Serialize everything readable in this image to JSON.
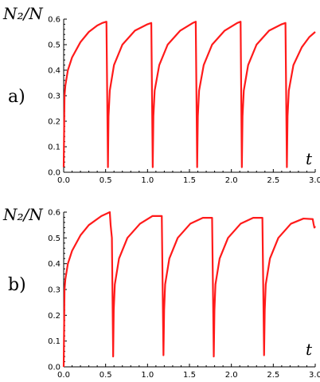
{
  "chart_data": [
    {
      "type": "line",
      "panel_label": "a)",
      "ylabel": "N₂/N",
      "xlabel": "t",
      "xlim": [
        0,
        3.0
      ],
      "ylim": [
        0,
        0.6
      ],
      "xticks": [
        "0.0",
        "0.5",
        "1.0",
        "1.5",
        "2.0",
        "2.5",
        "3.0"
      ],
      "yticks": [
        "0.0",
        "0.1",
        "0.2",
        "0.3",
        "0.4",
        "0.5",
        "0.6"
      ],
      "grid": false,
      "color": "#ff1a1a",
      "series": [
        {
          "values": [
            {
              "x": 0.0,
              "y": 0.02
            },
            {
              "x": 0.01,
              "y": 0.3
            },
            {
              "x": 0.02,
              "y": 0.34
            },
            {
              "x": 0.05,
              "y": 0.4
            },
            {
              "x": 0.1,
              "y": 0.45
            },
            {
              "x": 0.2,
              "y": 0.51
            },
            {
              "x": 0.3,
              "y": 0.55
            },
            {
              "x": 0.4,
              "y": 0.575
            },
            {
              "x": 0.46,
              "y": 0.585
            },
            {
              "x": 0.51,
              "y": 0.59
            },
            {
              "x": 0.528,
              "y": 0.02
            },
            {
              "x": 0.535,
              "y": 0.22
            },
            {
              "x": 0.55,
              "y": 0.32
            },
            {
              "x": 0.6,
              "y": 0.42
            },
            {
              "x": 0.7,
              "y": 0.5
            },
            {
              "x": 0.85,
              "y": 0.555
            },
            {
              "x": 1.0,
              "y": 0.58
            },
            {
              "x": 1.045,
              "y": 0.585
            },
            {
              "x": 1.062,
              "y": 0.02
            },
            {
              "x": 1.07,
              "y": 0.22
            },
            {
              "x": 1.085,
              "y": 0.32
            },
            {
              "x": 1.14,
              "y": 0.42
            },
            {
              "x": 1.24,
              "y": 0.5
            },
            {
              "x": 1.39,
              "y": 0.555
            },
            {
              "x": 1.54,
              "y": 0.585
            },
            {
              "x": 1.575,
              "y": 0.59
            },
            {
              "x": 1.592,
              "y": 0.02
            },
            {
              "x": 1.6,
              "y": 0.22
            },
            {
              "x": 1.615,
              "y": 0.32
            },
            {
              "x": 1.67,
              "y": 0.42
            },
            {
              "x": 1.77,
              "y": 0.5
            },
            {
              "x": 1.92,
              "y": 0.555
            },
            {
              "x": 2.07,
              "y": 0.585
            },
            {
              "x": 2.11,
              "y": 0.59
            },
            {
              "x": 2.125,
              "y": 0.02
            },
            {
              "x": 2.133,
              "y": 0.22
            },
            {
              "x": 2.148,
              "y": 0.32
            },
            {
              "x": 2.2,
              "y": 0.42
            },
            {
              "x": 2.3,
              "y": 0.5
            },
            {
              "x": 2.45,
              "y": 0.555
            },
            {
              "x": 2.6,
              "y": 0.58
            },
            {
              "x": 2.645,
              "y": 0.585
            },
            {
              "x": 2.662,
              "y": 0.02
            },
            {
              "x": 2.67,
              "y": 0.22
            },
            {
              "x": 2.685,
              "y": 0.32
            },
            {
              "x": 2.74,
              "y": 0.42
            },
            {
              "x": 2.84,
              "y": 0.49
            },
            {
              "x": 2.93,
              "y": 0.53
            },
            {
              "x": 3.0,
              "y": 0.55
            }
          ]
        }
      ]
    },
    {
      "type": "line",
      "panel_label": "b)",
      "ylabel": "N₂/N",
      "xlabel": "t",
      "xlim": [
        0,
        3.0
      ],
      "ylim": [
        0,
        0.6
      ],
      "xticks": [
        "0.0",
        "0.5",
        "1.0",
        "1.5",
        "2.0",
        "2.5",
        "3.0"
      ],
      "yticks": [
        "0.0",
        "0.1",
        "0.2",
        "0.3",
        "0.4",
        "0.5",
        "0.6"
      ],
      "grid": false,
      "color": "#ff1a1a",
      "series": [
        {
          "values": [
            {
              "x": 0.0,
              "y": 0.0
            },
            {
              "x": 0.01,
              "y": 0.3
            },
            {
              "x": 0.02,
              "y": 0.34
            },
            {
              "x": 0.05,
              "y": 0.4
            },
            {
              "x": 0.1,
              "y": 0.45
            },
            {
              "x": 0.2,
              "y": 0.51
            },
            {
              "x": 0.3,
              "y": 0.55
            },
            {
              "x": 0.45,
              "y": 0.585
            },
            {
              "x": 0.55,
              "y": 0.6
            },
            {
              "x": 0.56,
              "y": 0.55
            },
            {
              "x": 0.575,
              "y": 0.5
            },
            {
              "x": 0.59,
              "y": 0.04
            },
            {
              "x": 0.597,
              "y": 0.22
            },
            {
              "x": 0.61,
              "y": 0.32
            },
            {
              "x": 0.66,
              "y": 0.42
            },
            {
              "x": 0.76,
              "y": 0.5
            },
            {
              "x": 0.91,
              "y": 0.555
            },
            {
              "x": 1.06,
              "y": 0.585
            },
            {
              "x": 1.17,
              "y": 0.585
            },
            {
              "x": 1.19,
              "y": 0.045
            },
            {
              "x": 1.198,
              "y": 0.22
            },
            {
              "x": 1.21,
              "y": 0.32
            },
            {
              "x": 1.26,
              "y": 0.42
            },
            {
              "x": 1.36,
              "y": 0.5
            },
            {
              "x": 1.51,
              "y": 0.555
            },
            {
              "x": 1.66,
              "y": 0.578
            },
            {
              "x": 1.77,
              "y": 0.578
            },
            {
              "x": 1.79,
              "y": 0.04
            },
            {
              "x": 1.798,
              "y": 0.22
            },
            {
              "x": 1.81,
              "y": 0.32
            },
            {
              "x": 1.86,
              "y": 0.42
            },
            {
              "x": 1.96,
              "y": 0.5
            },
            {
              "x": 2.11,
              "y": 0.555
            },
            {
              "x": 2.26,
              "y": 0.578
            },
            {
              "x": 2.37,
              "y": 0.578
            },
            {
              "x": 2.39,
              "y": 0.045
            },
            {
              "x": 2.398,
              "y": 0.22
            },
            {
              "x": 2.41,
              "y": 0.32
            },
            {
              "x": 2.46,
              "y": 0.42
            },
            {
              "x": 2.56,
              "y": 0.5
            },
            {
              "x": 2.71,
              "y": 0.555
            },
            {
              "x": 2.86,
              "y": 0.575
            },
            {
              "x": 2.97,
              "y": 0.573
            },
            {
              "x": 2.98,
              "y": 0.555
            },
            {
              "x": 2.99,
              "y": 0.54
            },
            {
              "x": 3.0,
              "y": 0.545
            }
          ]
        }
      ]
    }
  ]
}
